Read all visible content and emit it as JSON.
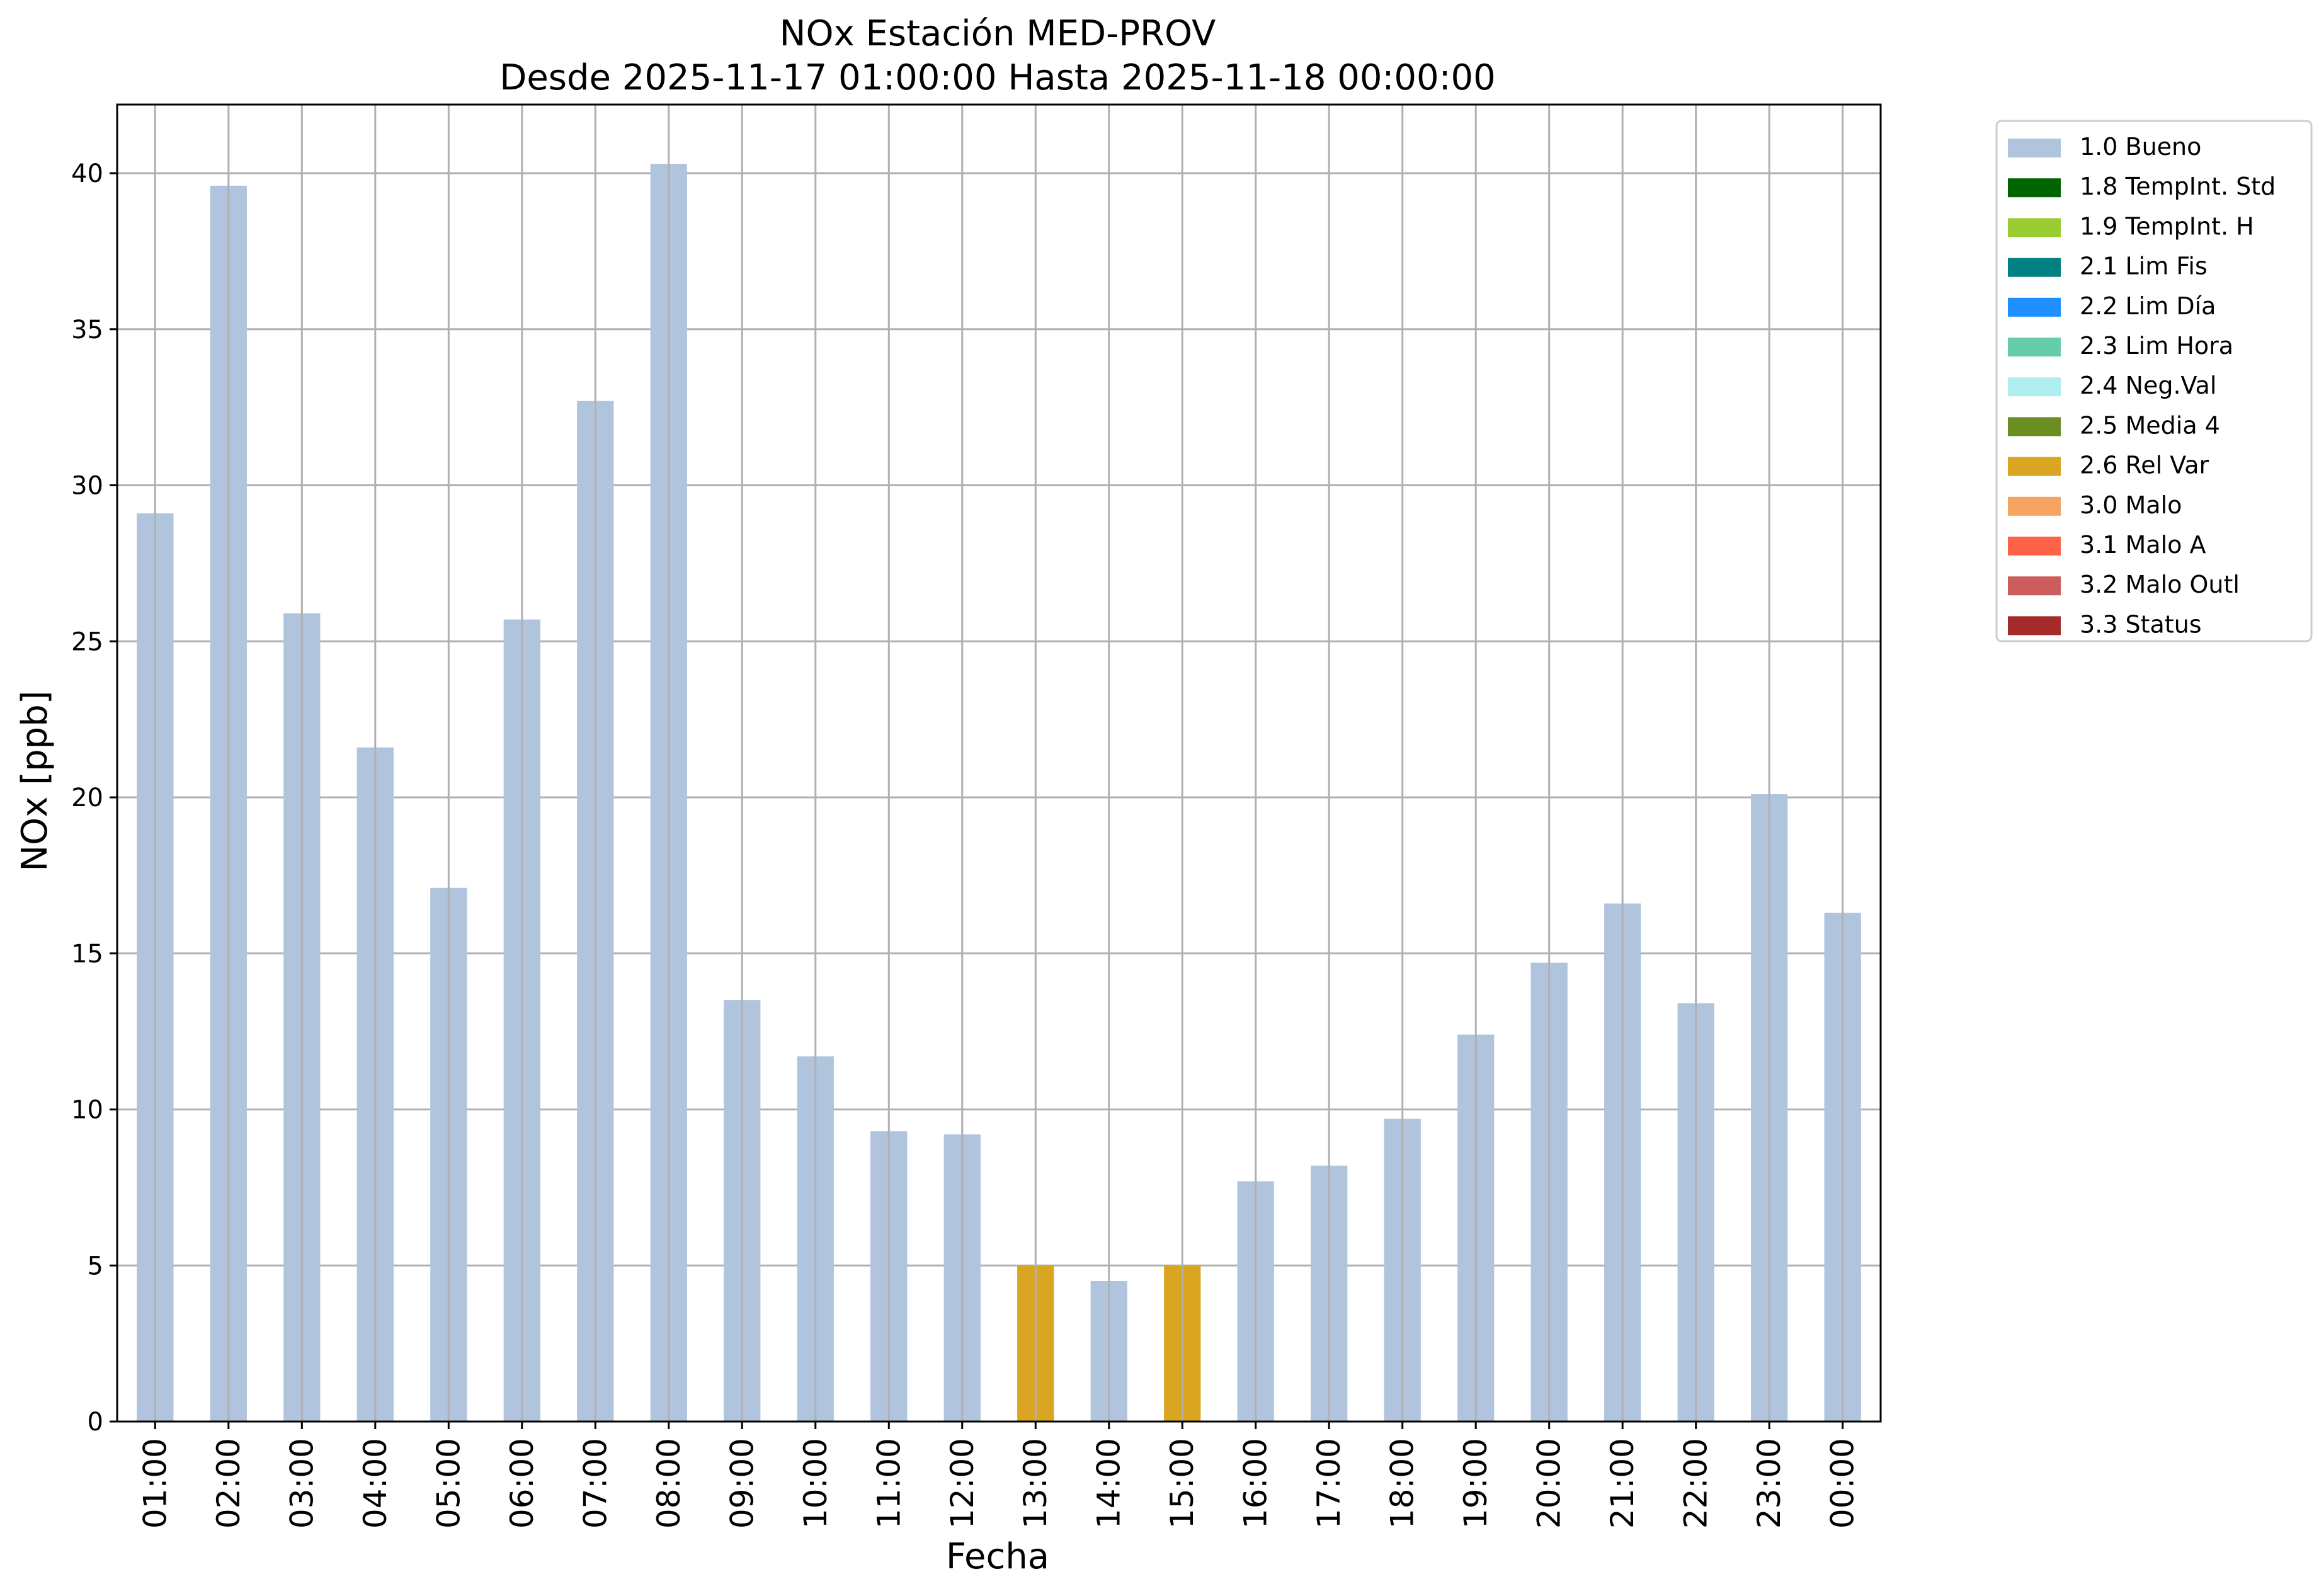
{
  "chart_data": {
    "type": "bar",
    "title": "NOx Estación MED-PROV",
    "subtitle": "Desde 2025-11-17 01:00:00 Hasta 2025-11-18 00:00:00",
    "xlabel": "Fecha",
    "ylabel": "NOx [ppb]",
    "ylim": [
      0,
      42.2
    ],
    "yticks": [
      0,
      5,
      10,
      15,
      20,
      25,
      30,
      35,
      40
    ],
    "grid": true,
    "legend_position": "outside-top-right",
    "categories": [
      "01:00",
      "02:00",
      "03:00",
      "04:00",
      "05:00",
      "06:00",
      "07:00",
      "08:00",
      "09:00",
      "10:00",
      "11:00",
      "12:00",
      "13:00",
      "14:00",
      "15:00",
      "16:00",
      "17:00",
      "18:00",
      "19:00",
      "20:00",
      "21:00",
      "22:00",
      "23:00",
      "00:00"
    ],
    "values": [
      29.1,
      39.6,
      25.9,
      21.6,
      17.1,
      25.7,
      32.7,
      40.3,
      13.5,
      11.7,
      9.3,
      9.2,
      5.0,
      4.5,
      5.0,
      7.7,
      8.2,
      9.7,
      12.4,
      14.7,
      16.6,
      13.4,
      20.1,
      16.3
    ],
    "flags": [
      "1.0 Bueno",
      "1.0 Bueno",
      "1.0 Bueno",
      "1.0 Bueno",
      "1.0 Bueno",
      "1.0 Bueno",
      "1.0 Bueno",
      "1.0 Bueno",
      "1.0 Bueno",
      "1.0 Bueno",
      "1.0 Bueno",
      "1.0 Bueno",
      "2.6 Rel Var",
      "1.0 Bueno",
      "2.6 Rel Var",
      "1.0 Bueno",
      "1.0 Bueno",
      "1.0 Bueno",
      "1.0 Bueno",
      "1.0 Bueno",
      "1.0 Bueno",
      "1.0 Bueno",
      "1.0 Bueno",
      "1.0 Bueno"
    ],
    "legend": [
      {
        "label": "1.0 Bueno",
        "color": "#b0c4de"
      },
      {
        "label": "1.8 TempInt. Std",
        "color": "#006400"
      },
      {
        "label": "1.9 TempInt. H",
        "color": "#9acd32"
      },
      {
        "label": "2.1 Lim Fis",
        "color": "#008080"
      },
      {
        "label": "2.2 Lim Día",
        "color": "#1e90ff"
      },
      {
        "label": "2.3 Lim Hora",
        "color": "#66cdaa"
      },
      {
        "label": "2.4 Neg.Val",
        "color": "#afeeee"
      },
      {
        "label": "2.5 Media 4",
        "color": "#6b8e23"
      },
      {
        "label": "2.6 Rel Var",
        "color": "#daa520"
      },
      {
        "label": "3.0 Malo",
        "color": "#f4a460"
      },
      {
        "label": "3.1 Malo A",
        "color": "#ff6347"
      },
      {
        "label": "3.2 Malo Outl",
        "color": "#cd5c5c"
      },
      {
        "label": "3.3 Status",
        "color": "#a52a2a"
      }
    ]
  }
}
